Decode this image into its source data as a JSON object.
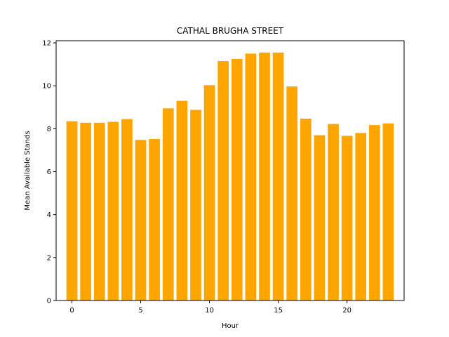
{
  "chart_data": {
    "type": "bar",
    "title": "CATHAL BRUGHA STREET",
    "xlabel": "Hour",
    "ylabel": "Mean Available Stands",
    "x": [
      0,
      1,
      2,
      3,
      4,
      5,
      6,
      7,
      8,
      9,
      10,
      11,
      12,
      13,
      14,
      15,
      16,
      17,
      18,
      19,
      20,
      21,
      22,
      23
    ],
    "values": [
      8.35,
      8.28,
      8.28,
      8.32,
      8.45,
      7.48,
      7.52,
      8.95,
      9.3,
      8.88,
      10.03,
      11.15,
      11.25,
      11.5,
      11.55,
      11.55,
      9.97,
      8.47,
      7.7,
      8.22,
      7.67,
      7.8,
      8.17,
      8.25
    ],
    "xlim": [
      -1.15,
      24.15
    ],
    "ylim": [
      0,
      12.1
    ],
    "xticks": [
      0,
      5,
      10,
      15,
      20
    ],
    "yticks": [
      0,
      2,
      4,
      6,
      8,
      10,
      12
    ],
    "bar_color": "#ffa500",
    "grid": false,
    "legend": "none"
  }
}
